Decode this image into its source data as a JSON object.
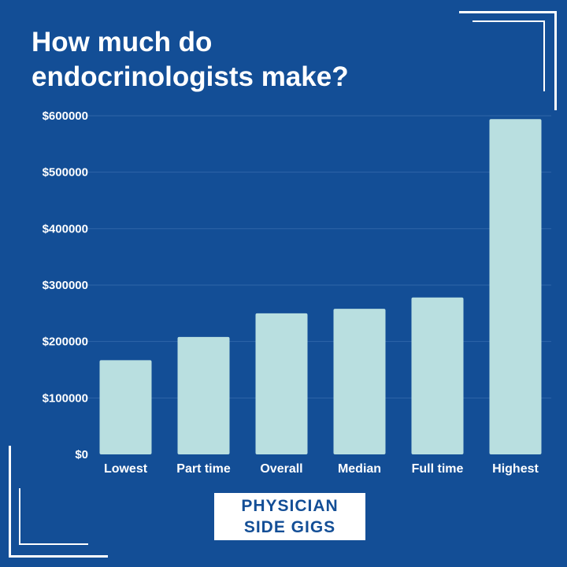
{
  "title_lines": [
    "How much do",
    "endocrinologists make?"
  ],
  "logo_lines": [
    "PHYSICIAN",
    "SIDE GIGS"
  ],
  "colors": {
    "background": "#134e96",
    "bar": "#b9dfe0",
    "grid": "#2f66a8",
    "text": "#ffffff"
  },
  "chart_data": {
    "type": "bar",
    "title": "How much do endocrinologists make?",
    "categories": [
      "Lowest",
      "Part time",
      "Overall",
      "Median",
      "Full time",
      "Highest"
    ],
    "values": [
      167000,
      208000,
      250000,
      258000,
      278000,
      594000
    ],
    "ylim": [
      0,
      600000
    ],
    "yticks": [
      0,
      100000,
      200000,
      300000,
      400000,
      500000,
      600000
    ],
    "ytick_labels": [
      "$0",
      "$100000",
      "$200000",
      "$300000",
      "$400000",
      "$500000",
      "$600000"
    ],
    "grid": true,
    "xlabel": "",
    "ylabel": ""
  }
}
